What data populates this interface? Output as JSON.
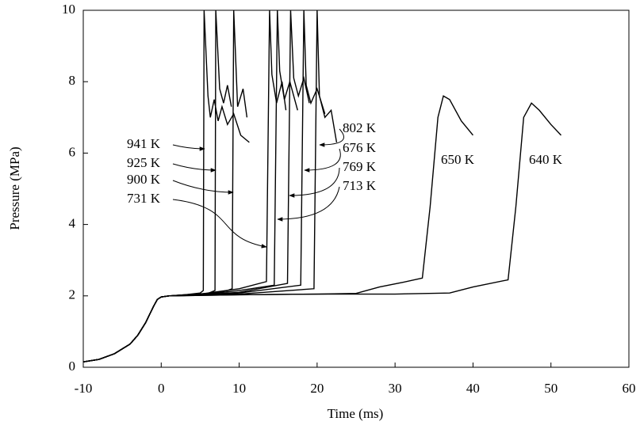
{
  "chart_data": {
    "type": "line",
    "x_label": "Time (ms)",
    "y_label": "Pressure (MPa)",
    "xlim": [
      -10,
      60
    ],
    "xticks": [
      -10,
      0,
      10,
      20,
      30,
      40,
      50,
      60
    ],
    "ylim": [
      0,
      10
    ],
    "yticks": [
      0,
      2,
      4,
      6,
      8,
      10
    ],
    "color": "#000000",
    "series": [
      {
        "name": "941 K",
        "x": [
          -10,
          -8,
          -6,
          -4,
          -3,
          -2,
          -1,
          -0.5,
          0,
          1,
          3,
          5,
          5.4,
          5.5,
          6,
          6.3,
          6.8,
          7.3,
          7.8,
          8.5,
          9.3,
          10.2,
          11.3
        ],
        "values": [
          0.15,
          0.22,
          0.38,
          0.65,
          0.9,
          1.25,
          1.7,
          1.9,
          1.97,
          2.0,
          2.03,
          2.08,
          2.15,
          10,
          7.6,
          7.0,
          7.5,
          6.9,
          7.3,
          6.8,
          7.1,
          6.5,
          6.3
        ]
      },
      {
        "name": "925 K",
        "x": [
          -10,
          -8,
          -6,
          -4,
          -3,
          -2,
          -1,
          -0.5,
          0,
          1,
          3,
          6,
          6.9,
          7.0,
          7.5,
          8,
          8.5,
          9
        ],
        "values": [
          0.15,
          0.22,
          0.38,
          0.65,
          0.9,
          1.25,
          1.7,
          1.9,
          1.97,
          2.0,
          2.03,
          2.07,
          2.15,
          10,
          7.8,
          7.4,
          7.9,
          7.3
        ]
      },
      {
        "name": "900 K",
        "x": [
          -10,
          -8,
          -6,
          -4,
          -3,
          -2,
          -1,
          -0.5,
          0,
          1,
          3,
          6,
          8.5,
          9.1,
          9.3,
          9.8,
          10.5,
          11
        ],
        "values": [
          0.15,
          0.22,
          0.38,
          0.65,
          0.9,
          1.25,
          1.7,
          1.9,
          1.97,
          2.0,
          2.03,
          2.07,
          2.15,
          2.2,
          10,
          7.3,
          7.8,
          7.0
        ]
      },
      {
        "name": "731 K",
        "x": [
          -10,
          -8,
          -6,
          -4,
          -3,
          -2,
          -1,
          -0.5,
          0,
          1,
          5,
          10,
          13.5,
          13.9,
          14.2,
          14.8,
          15.5,
          16
        ],
        "values": [
          0.15,
          0.22,
          0.38,
          0.65,
          0.9,
          1.25,
          1.7,
          1.9,
          1.97,
          2.0,
          2.05,
          2.2,
          2.4,
          10,
          8.2,
          7.4,
          8.0,
          7.2
        ]
      },
      {
        "name": "802 K",
        "x": [
          -10,
          -8,
          -6,
          -4,
          -3,
          -2,
          -1,
          -0.5,
          0,
          1,
          5,
          10,
          19.6,
          20.0,
          20.3,
          21,
          21.8,
          22.5
        ],
        "values": [
          0.15,
          0.22,
          0.38,
          0.65,
          0.9,
          1.25,
          1.7,
          1.9,
          1.97,
          2.0,
          2.02,
          2.05,
          2.2,
          10,
          7.6,
          7.0,
          7.2,
          6.3
        ]
      },
      {
        "name": "676 K",
        "x": [
          -10,
          -8,
          -6,
          -4,
          -3,
          -2,
          -1,
          -0.5,
          0,
          1,
          5,
          10,
          17.9,
          18.3,
          18.6,
          19.2,
          20,
          21
        ],
        "values": [
          0.15,
          0.22,
          0.38,
          0.65,
          0.9,
          1.25,
          1.7,
          1.9,
          1.97,
          2.0,
          2.02,
          2.08,
          2.3,
          10,
          7.9,
          7.4,
          7.8,
          7.1
        ]
      },
      {
        "name": "769 K",
        "x": [
          -10,
          -8,
          -6,
          -4,
          -3,
          -2,
          -1,
          -0.5,
          0,
          1,
          5,
          10,
          16.2,
          16.6,
          17,
          17.6,
          18.3,
          19
        ],
        "values": [
          0.15,
          0.22,
          0.38,
          0.65,
          0.9,
          1.25,
          1.7,
          1.9,
          1.97,
          2.0,
          2.03,
          2.1,
          2.35,
          10,
          8.1,
          7.6,
          8.1,
          7.4
        ]
      },
      {
        "name": "713 K",
        "x": [
          -10,
          -8,
          -6,
          -4,
          -3,
          -2,
          -1,
          -0.5,
          0,
          1,
          5,
          10,
          14.5,
          14.9,
          15.2,
          15.8,
          16.5,
          17.5
        ],
        "values": [
          0.15,
          0.22,
          0.38,
          0.65,
          0.9,
          1.25,
          1.7,
          1.9,
          1.97,
          2.0,
          2.03,
          2.15,
          2.3,
          10,
          8.3,
          7.5,
          8.0,
          7.2
        ]
      },
      {
        "name": "650 K",
        "x": [
          -10,
          -8,
          -6,
          -4,
          -3,
          -2,
          -1,
          -0.5,
          0,
          1,
          10,
          20,
          25,
          28,
          31,
          33.5,
          34.5,
          35.5,
          36.2,
          37,
          38.5,
          40
        ],
        "values": [
          0.15,
          0.22,
          0.38,
          0.65,
          0.9,
          1.25,
          1.7,
          1.9,
          1.97,
          2.0,
          2.03,
          2.05,
          2.07,
          2.25,
          2.38,
          2.5,
          4.5,
          7.0,
          7.6,
          7.5,
          6.9,
          6.5
        ]
      },
      {
        "name": "640 K",
        "x": [
          -10,
          -8,
          -6,
          -4,
          -3,
          -2,
          -1,
          -0.5,
          0,
          1,
          10,
          20,
          30,
          37,
          40,
          44.5,
          45.5,
          46.5,
          47.5,
          48.5,
          50,
          51.3
        ],
        "values": [
          0.15,
          0.22,
          0.38,
          0.65,
          0.9,
          1.25,
          1.7,
          1.9,
          1.97,
          2.0,
          2.03,
          2.05,
          2.05,
          2.08,
          2.25,
          2.45,
          4.5,
          7.0,
          7.4,
          7.2,
          6.8,
          6.5
        ]
      }
    ]
  }
}
